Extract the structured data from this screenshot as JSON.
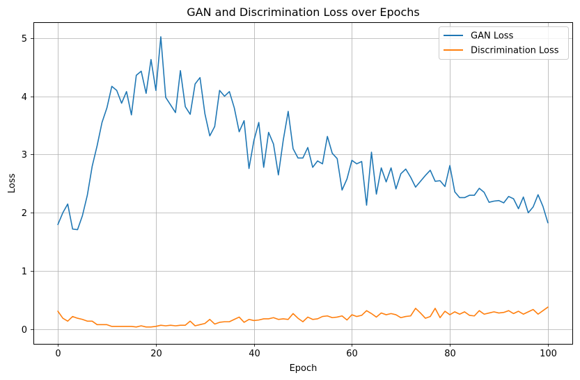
{
  "chart_data": {
    "type": "line",
    "title": "GAN and Discrimination Loss over Epochs",
    "xlabel": "Epoch",
    "ylabel": "Loss",
    "xlim": [
      -5,
      105
    ],
    "ylim": [
      -0.25,
      5.27
    ],
    "xticks": [
      0,
      20,
      40,
      60,
      80,
      100
    ],
    "yticks": [
      0,
      1,
      2,
      3,
      4,
      5
    ],
    "grid": true,
    "legend_position": "top-right",
    "series": [
      {
        "name": "GAN Loss",
        "color": "#1f77b4",
        "x": [
          0,
          1,
          2,
          3,
          4,
          5,
          6,
          7,
          8,
          9,
          10,
          11,
          12,
          13,
          14,
          15,
          16,
          17,
          18,
          19,
          20,
          21,
          22,
          23,
          24,
          25,
          26,
          27,
          28,
          29,
          30,
          31,
          32,
          33,
          34,
          35,
          36,
          37,
          38,
          39,
          40,
          41,
          42,
          43,
          44,
          45,
          46,
          47,
          48,
          49,
          50,
          51,
          52,
          53,
          54,
          55,
          56,
          57,
          58,
          59,
          60,
          61,
          62,
          63,
          64,
          65,
          66,
          67,
          68,
          69,
          70,
          71,
          72,
          73,
          74,
          75,
          76,
          77,
          78,
          79,
          80,
          81,
          82,
          83,
          84,
          85,
          86,
          87,
          88,
          89,
          90,
          91,
          92,
          93,
          94,
          95,
          96,
          97,
          98,
          99,
          100
        ],
        "values": [
          1.8,
          2.0,
          2.15,
          1.72,
          1.71,
          1.95,
          2.3,
          2.8,
          3.15,
          3.55,
          3.8,
          4.17,
          4.1,
          3.88,
          4.08,
          3.68,
          4.36,
          4.43,
          4.05,
          4.63,
          4.1,
          5.02,
          3.98,
          3.85,
          3.72,
          4.44,
          3.82,
          3.69,
          4.21,
          4.32,
          3.7,
          3.32,
          3.48,
          4.1,
          4.0,
          4.08,
          3.8,
          3.39,
          3.58,
          2.76,
          3.24,
          3.55,
          2.78,
          3.38,
          3.18,
          2.65,
          3.25,
          3.74,
          3.1,
          2.94,
          2.94,
          3.12,
          2.78,
          2.89,
          2.84,
          3.31,
          3.02,
          2.93,
          2.39,
          2.58,
          2.9,
          2.84,
          2.88,
          2.13,
          3.04,
          2.32,
          2.77,
          2.53,
          2.77,
          2.41,
          2.67,
          2.75,
          2.61,
          2.44,
          2.54,
          2.64,
          2.73,
          2.54,
          2.55,
          2.45,
          2.81,
          2.36,
          2.26,
          2.26,
          2.3,
          2.3,
          2.42,
          2.35,
          2.18,
          2.2,
          2.21,
          2.17,
          2.28,
          2.24,
          2.07,
          2.27,
          2.0,
          2.1,
          2.31,
          2.11,
          1.83
        ]
      },
      {
        "name": "Discrimination Loss",
        "color": "#ff7f0e",
        "x": [
          0,
          1,
          2,
          3,
          4,
          5,
          6,
          7,
          8,
          9,
          10,
          11,
          12,
          13,
          14,
          15,
          16,
          17,
          18,
          19,
          20,
          21,
          22,
          23,
          24,
          25,
          26,
          27,
          28,
          29,
          30,
          31,
          32,
          33,
          34,
          35,
          36,
          37,
          38,
          39,
          40,
          41,
          42,
          43,
          44,
          45,
          46,
          47,
          48,
          49,
          50,
          51,
          52,
          53,
          54,
          55,
          56,
          57,
          58,
          59,
          60,
          61,
          62,
          63,
          64,
          65,
          66,
          67,
          68,
          69,
          70,
          71,
          72,
          73,
          74,
          75,
          76,
          77,
          78,
          79,
          80,
          81,
          82,
          83,
          84,
          85,
          86,
          87,
          88,
          89,
          90,
          91,
          92,
          93,
          94,
          95,
          96,
          97,
          98,
          99,
          100
        ],
        "values": [
          0.31,
          0.19,
          0.14,
          0.22,
          0.19,
          0.17,
          0.14,
          0.14,
          0.08,
          0.08,
          0.08,
          0.05,
          0.05,
          0.05,
          0.05,
          0.05,
          0.04,
          0.06,
          0.04,
          0.04,
          0.05,
          0.07,
          0.06,
          0.07,
          0.06,
          0.07,
          0.07,
          0.14,
          0.06,
          0.08,
          0.1,
          0.17,
          0.09,
          0.12,
          0.13,
          0.13,
          0.17,
          0.21,
          0.12,
          0.17,
          0.15,
          0.16,
          0.18,
          0.18,
          0.2,
          0.17,
          0.18,
          0.17,
          0.27,
          0.19,
          0.13,
          0.21,
          0.17,
          0.18,
          0.22,
          0.23,
          0.2,
          0.21,
          0.23,
          0.16,
          0.25,
          0.22,
          0.24,
          0.32,
          0.27,
          0.21,
          0.28,
          0.25,
          0.27,
          0.25,
          0.2,
          0.22,
          0.23,
          0.36,
          0.28,
          0.19,
          0.22,
          0.36,
          0.2,
          0.31,
          0.25,
          0.3,
          0.26,
          0.3,
          0.24,
          0.23,
          0.32,
          0.26,
          0.28,
          0.3,
          0.28,
          0.29,
          0.32,
          0.27,
          0.31,
          0.26,
          0.3,
          0.34,
          0.26,
          0.32,
          0.38
        ]
      }
    ]
  }
}
